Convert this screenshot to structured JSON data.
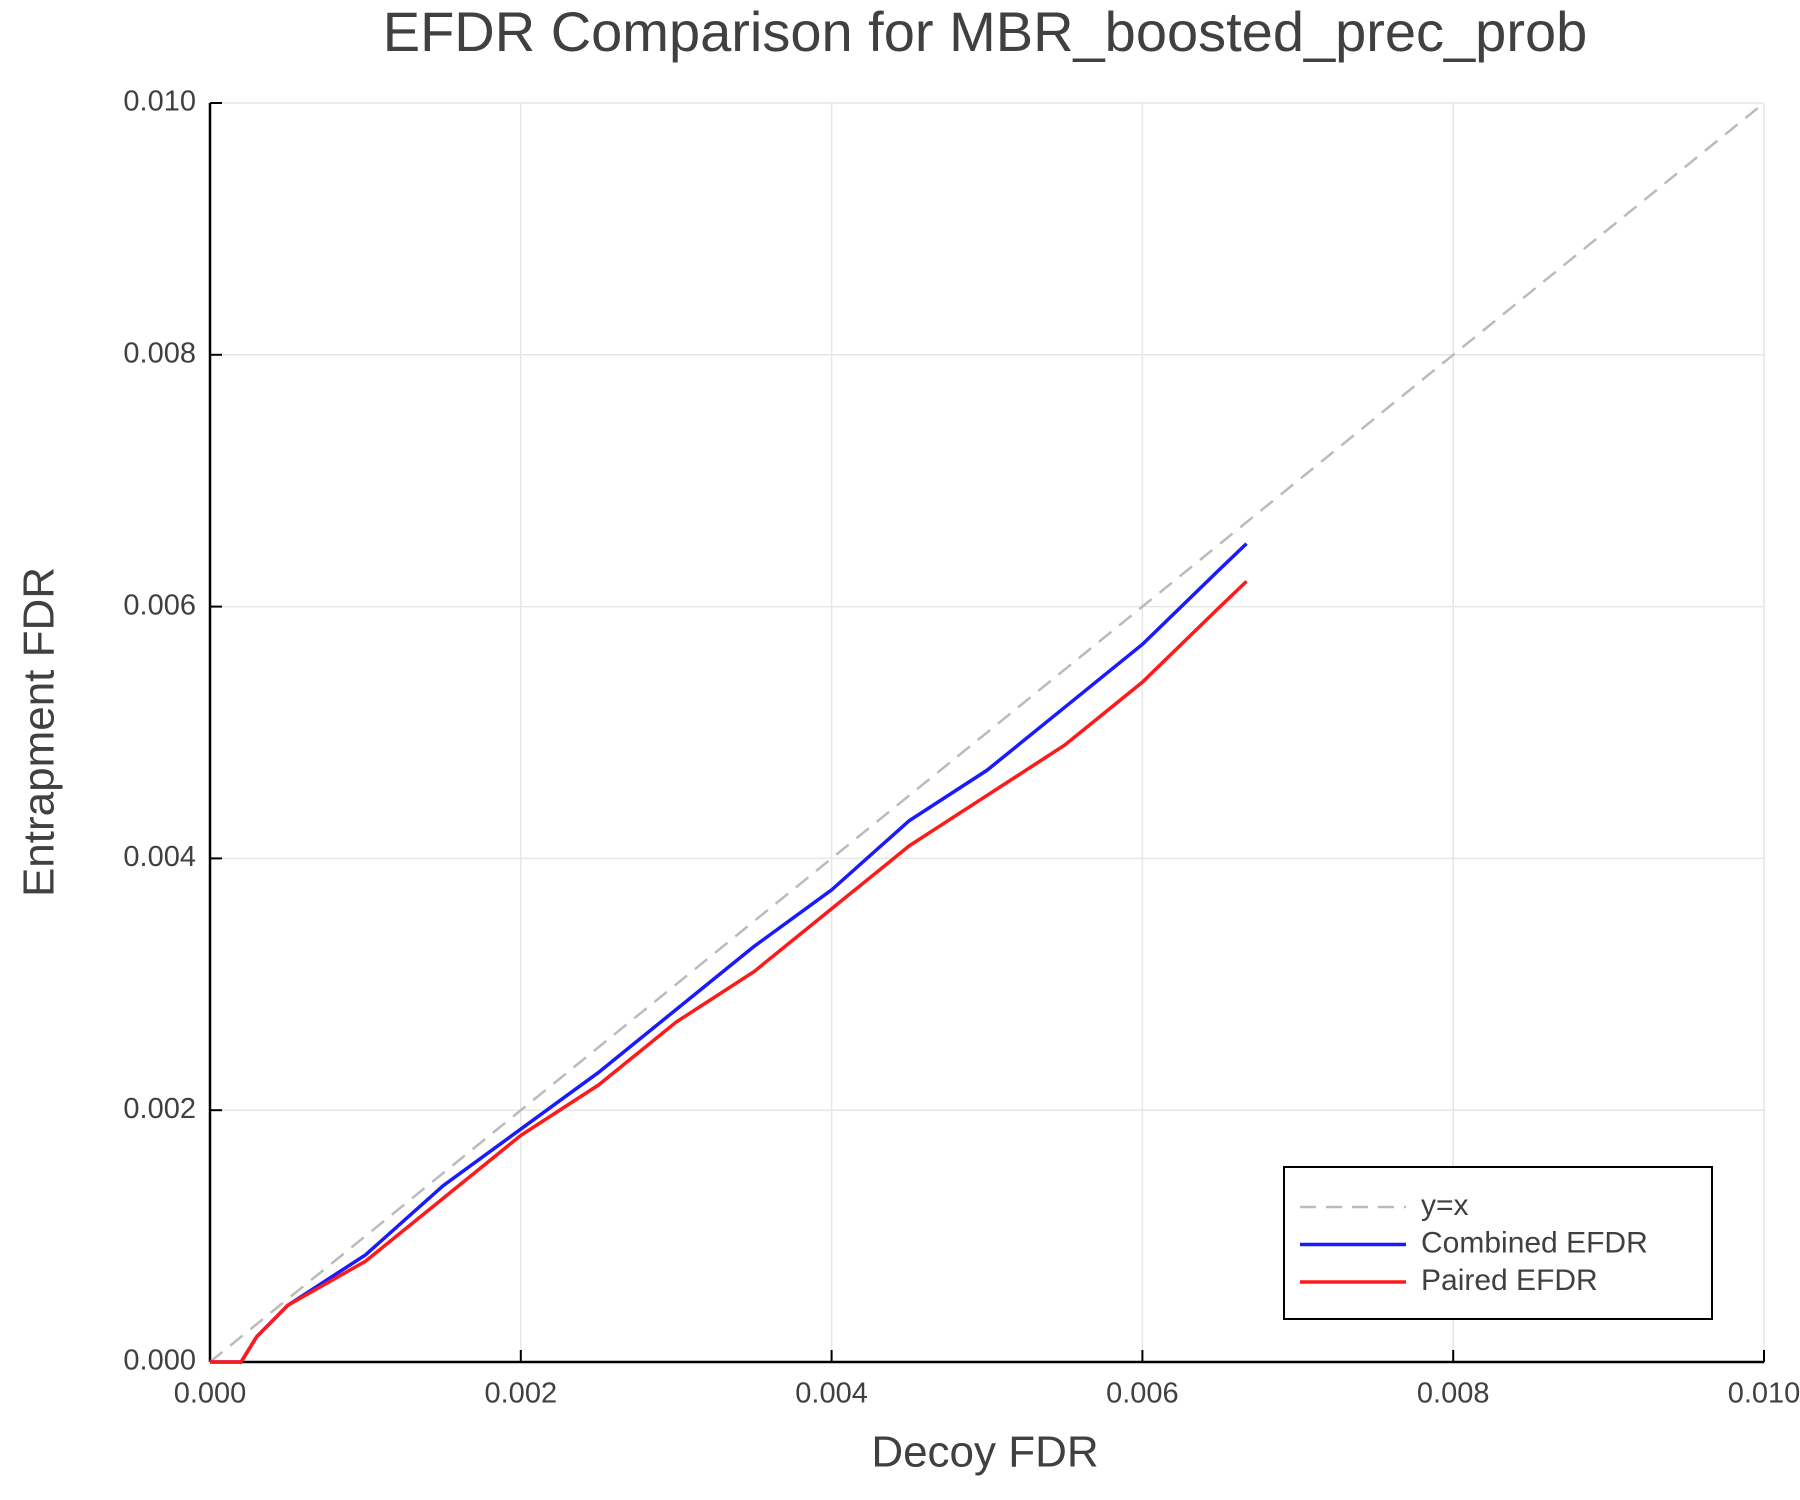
{
  "chart_data": {
    "type": "line",
    "title": "EFDR Comparison for MBR_boosted_prec_prob",
    "x_label": "Decoy FDR",
    "y_label": "Entrapment FDR",
    "xlim": [
      0,
      0.01
    ],
    "ylim": [
      0,
      0.01
    ],
    "xticks": [
      {
        "value": 0,
        "label": "0.000"
      },
      {
        "value": 0.002,
        "label": "0.002"
      },
      {
        "value": 0.004,
        "label": "0.004"
      },
      {
        "value": 0.006,
        "label": "0.006"
      },
      {
        "value": 0.008,
        "label": "0.008"
      },
      {
        "value": 0.01,
        "label": "0.010"
      }
    ],
    "yticks": [
      {
        "value": 0,
        "label": "0.000"
      },
      {
        "value": 0.002,
        "label": "0.002"
      },
      {
        "value": 0.004,
        "label": "0.004"
      },
      {
        "value": 0.006,
        "label": "0.006"
      },
      {
        "value": 0.008,
        "label": "0.008"
      },
      {
        "value": 0.01,
        "label": "0.010"
      }
    ],
    "grid": true,
    "legend": "bottom right",
    "series": [
      {
        "name": "y=x",
        "color": "#bbbbbb",
        "dashed": true,
        "x": [
          0,
          0.01
        ],
        "values": [
          0,
          0.01
        ]
      },
      {
        "name": "Combined EFDR",
        "color": "#1a1aff",
        "dashed": false,
        "x": [
          0,
          0.0002,
          0.00025,
          0.0003,
          0.0005,
          0.001,
          0.0015,
          0.002,
          0.0025,
          0.003,
          0.0035,
          0.004,
          0.0045,
          0.005,
          0.0055,
          0.006,
          0.0065,
          0.00667
        ],
        "values": [
          0,
          0,
          0.0001,
          0.0002,
          0.00045,
          0.00085,
          0.0014,
          0.00185,
          0.0023,
          0.0028,
          0.0033,
          0.00375,
          0.0043,
          0.0047,
          0.0052,
          0.0057,
          0.0063,
          0.0065
        ]
      },
      {
        "name": "Paired EFDR",
        "color": "#ff1a1a",
        "dashed": false,
        "x": [
          0,
          0.0002,
          0.00025,
          0.0003,
          0.0005,
          0.001,
          0.0015,
          0.002,
          0.0025,
          0.003,
          0.0035,
          0.004,
          0.0045,
          0.005,
          0.0055,
          0.006,
          0.0065,
          0.00667
        ],
        "values": [
          0,
          0,
          0.0001,
          0.0002,
          0.00045,
          0.0008,
          0.0013,
          0.0018,
          0.0022,
          0.0027,
          0.0031,
          0.0036,
          0.0041,
          0.0045,
          0.0049,
          0.0054,
          0.006,
          0.0062
        ]
      }
    ]
  }
}
